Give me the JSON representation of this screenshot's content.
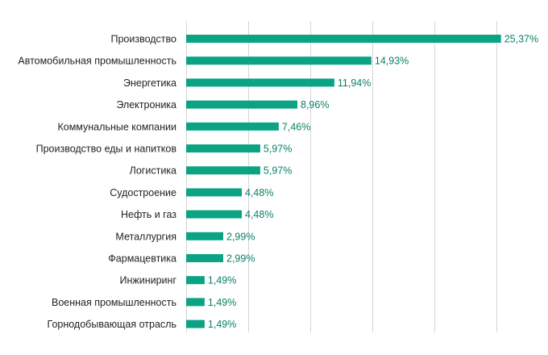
{
  "chart_data": {
    "type": "bar",
    "orientation": "horizontal",
    "categories": [
      "Производство",
      "Автомобильная промышленность",
      "Энергетика",
      "Электроника",
      "Коммунальные компании",
      "Производство еды и напитков",
      "Логистика",
      "Судостроение",
      "Нефть и газ",
      "Металлургия",
      "Фармацевтика",
      "Инжиниринг",
      "Военная промышленность",
      "Горнодобывающая отрасль"
    ],
    "values": [
      25.37,
      14.93,
      11.94,
      8.96,
      7.46,
      5.97,
      5.97,
      4.48,
      4.48,
      2.99,
      2.99,
      1.49,
      1.49,
      1.49
    ],
    "value_labels": [
      "25,37%",
      "14,93%",
      "11,94%",
      "8,96%",
      "7,46%",
      "5,97%",
      "5,97%",
      "4,48%",
      "4,48%",
      "2,99%",
      "2,99%",
      "1,49%",
      "1,49%",
      "1,49%"
    ],
    "xlim": [
      0,
      30
    ],
    "grid": true,
    "legend": "none",
    "title": "",
    "xlabel": "",
    "ylabel": ""
  },
  "colors": {
    "bar": "#0aa383",
    "value_label": "#0a7f66",
    "category_label": "#222222",
    "grid": "#d6d6d6"
  }
}
